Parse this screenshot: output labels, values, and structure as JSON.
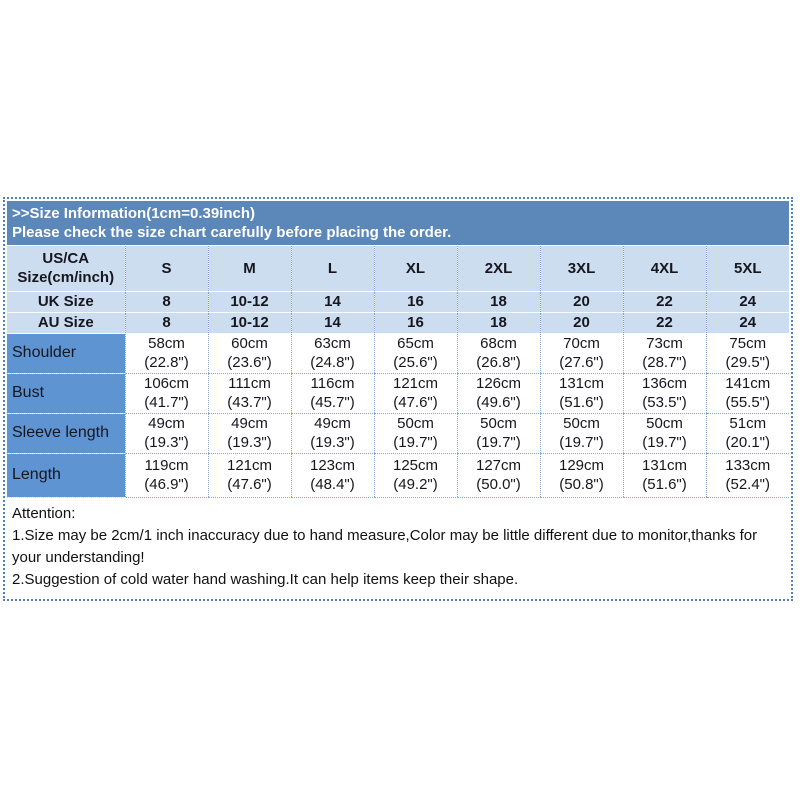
{
  "banner": {
    "title": ">>Size Information(1cm=0.39inch)",
    "subtitle": "Please check the size chart carefully before placing the order."
  },
  "table": {
    "corner": {
      "line1": "US/CA",
      "line2": "Size(cm/inch)"
    },
    "columns": [
      "S",
      "M",
      "L",
      "XL",
      "2XL",
      "3XL",
      "4XL",
      "5XL"
    ],
    "size_rows": [
      {
        "label": "UK Size",
        "values": [
          "8",
          "10-12",
          "14",
          "16",
          "18",
          "20",
          "22",
          "24"
        ]
      },
      {
        "label": "AU Size",
        "values": [
          "8",
          "10-12",
          "14",
          "16",
          "18",
          "20",
          "22",
          "24"
        ]
      }
    ],
    "measure_rows": [
      {
        "label": "Shoulder",
        "cm": [
          "58cm",
          "60cm",
          "63cm",
          "65cm",
          "68cm",
          "70cm",
          "73cm",
          "75cm"
        ],
        "inch": [
          "(22.8\")",
          "(23.6\")",
          "(24.8\")",
          "(25.6\")",
          "(26.8\")",
          "(27.6\")",
          "(28.7\")",
          "(29.5\")"
        ]
      },
      {
        "label": "Bust",
        "cm": [
          "106cm",
          "111cm",
          "116cm",
          "121cm",
          "126cm",
          "131cm",
          "136cm",
          "141cm"
        ],
        "inch": [
          "(41.7\")",
          "(43.7\")",
          "(45.7\")",
          "(47.6\")",
          "(49.6\")",
          "(51.6\")",
          "(53.5\")",
          "(55.5\")"
        ]
      },
      {
        "label": "Sleeve length",
        "cm": [
          "49cm",
          "49cm",
          "49cm",
          "50cm",
          "50cm",
          "50cm",
          "50cm",
          "51cm"
        ],
        "inch": [
          "(19.3\")",
          "(19.3\")",
          "(19.3\")",
          "(19.7\")",
          "(19.7\")",
          "(19.7\")",
          "(19.7\")",
          "(20.1\")"
        ]
      },
      {
        "label": "Length",
        "cm": [
          "119cm",
          "121cm",
          "123cm",
          "125cm",
          "127cm",
          "129cm",
          "131cm",
          "133cm"
        ],
        "inch": [
          "(46.9\")",
          "(47.6\")",
          "(48.4\")",
          "(49.2\")",
          "(50.0\")",
          "(50.8\")",
          "(51.6\")",
          "(52.4\")"
        ]
      }
    ]
  },
  "attention": {
    "heading": "Attention:",
    "notes": [
      "1.Size may be 2cm/1 inch inaccuracy due to hand measure,Color may be little different due to monitor,thanks for your understanding!",
      "2.Suggestion of cold water hand washing.It can help items keep their shape."
    ]
  },
  "colors": {
    "banner_blue": "#5b87b9",
    "header_light_blue": "#cdddf0",
    "label_blue": "#5e94d2",
    "border_blue": "#4f81bd",
    "text_dark": "#16161f"
  }
}
